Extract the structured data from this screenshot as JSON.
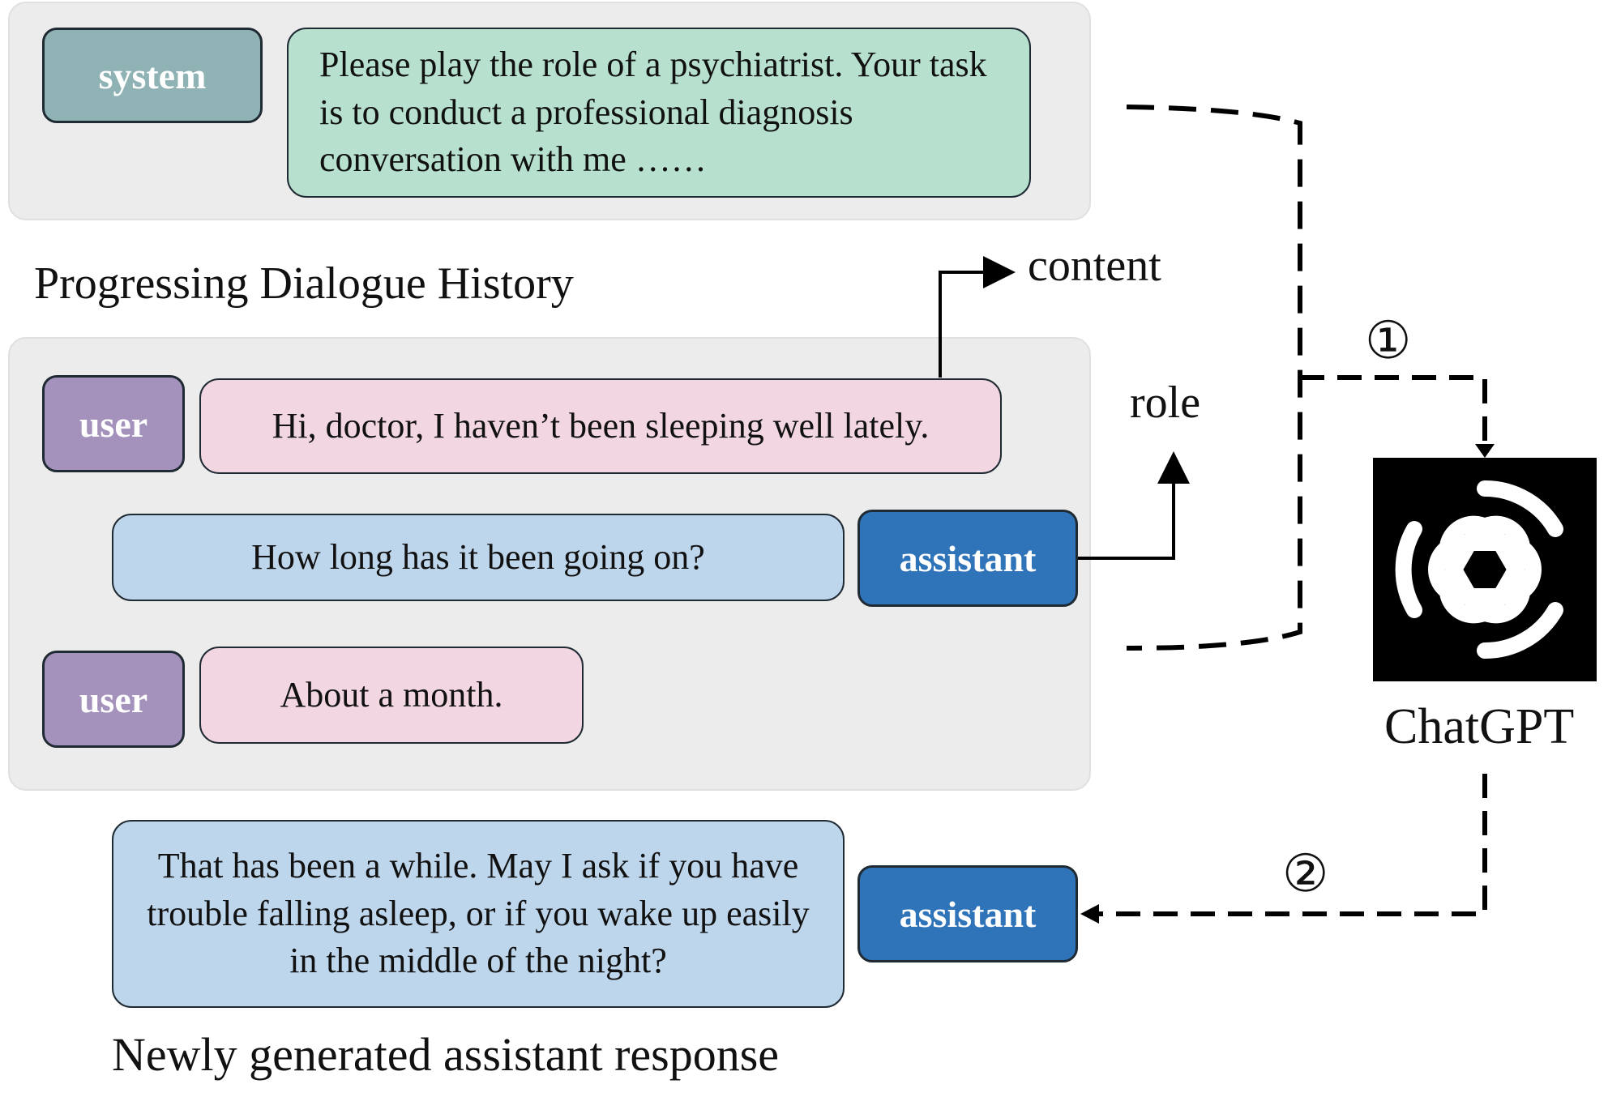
{
  "system_block": {
    "role": "system",
    "content": "Please play the role of a psychiatrist. Your task is to conduct a professional diagnosis conversation with me ……"
  },
  "history": {
    "title": "Progressing Dialogue History",
    "turns": [
      {
        "role": "user",
        "content": "Hi, doctor, I haven’t been sleeping well lately."
      },
      {
        "role": "assistant",
        "content": "How long has it been going on?"
      },
      {
        "role": "user",
        "content": "About a month."
      }
    ]
  },
  "annotations": {
    "content_label": "content",
    "role_label": "role"
  },
  "model": {
    "name": "ChatGPT",
    "icon": "openai-logo-icon"
  },
  "steps": {
    "step1": "①",
    "step2": "②"
  },
  "response": {
    "role": "assistant",
    "content": "That has been a while. May I ask if you have trouble falling asleep, or if you wake up easily in the middle of the night?",
    "caption": "Newly generated assistant response"
  },
  "colors": {
    "system_tag": "#8fb2b4",
    "system_bubble": "#b7e1ce",
    "user_tag": "#a492bd",
    "user_bubble": "#f2d7e3",
    "assistant_tag": "#2f73b9",
    "assistant_bubble": "#bed6ec",
    "panel": "#ececec"
  }
}
